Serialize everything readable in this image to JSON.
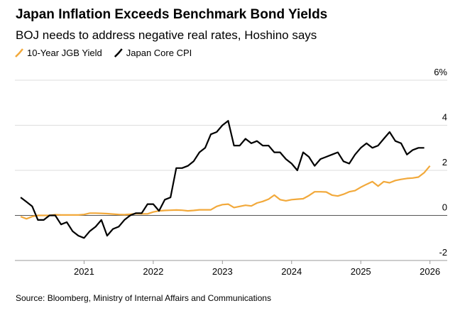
{
  "chart_data": {
    "type": "line",
    "title": "Japan Inflation Exceeds Benchmark Bond Yields",
    "subtitle": "BOJ needs to address negative real rates, Hoshino says",
    "source": "Source: Bloomberg, Ministry of Internal Affairs and Communications",
    "x": [
      2020.083,
      2020.167,
      2020.25,
      2020.333,
      2020.417,
      2020.5,
      2020.583,
      2020.667,
      2020.75,
      2020.833,
      2020.917,
      2021,
      2021.083,
      2021.167,
      2021.25,
      2021.333,
      2021.417,
      2021.5,
      2021.583,
      2021.667,
      2021.75,
      2021.833,
      2021.917,
      2022,
      2022.083,
      2022.167,
      2022.25,
      2022.333,
      2022.417,
      2022.5,
      2022.583,
      2022.667,
      2022.75,
      2022.833,
      2022.917,
      2023,
      2023.083,
      2023.167,
      2023.25,
      2023.333,
      2023.417,
      2023.5,
      2023.583,
      2023.667,
      2023.75,
      2023.833,
      2023.917,
      2024,
      2024.083,
      2024.167,
      2024.25,
      2024.333,
      2024.417,
      2024.5,
      2024.583,
      2024.667,
      2024.75,
      2024.833,
      2024.917,
      2025,
      2025.083,
      2025.167,
      2025.25,
      2025.333,
      2025.417,
      2025.5,
      2025.583,
      2025.667,
      2025.75,
      2025.833,
      2025.917,
      2026
    ],
    "series": [
      {
        "name": "10-Year JGB Yield",
        "color": "#f2a93b",
        "values": [
          -0.05,
          -0.15,
          -0.05,
          0,
          0,
          0,
          0.03,
          0.02,
          0.02,
          0.02,
          0.02,
          0.04,
          0.1,
          0.1,
          0.09,
          0.08,
          0.06,
          0.04,
          0.03,
          0.05,
          0.08,
          0.07,
          0.07,
          0.15,
          0.2,
          0.22,
          0.23,
          0.24,
          0.23,
          0.2,
          0.22,
          0.25,
          0.25,
          0.25,
          0.4,
          0.48,
          0.5,
          0.35,
          0.4,
          0.45,
          0.42,
          0.55,
          0.62,
          0.72,
          0.9,
          0.7,
          0.65,
          0.7,
          0.72,
          0.74,
          0.88,
          1.05,
          1.05,
          1.04,
          0.9,
          0.86,
          0.94,
          1.05,
          1.1,
          1.25,
          1.38,
          1.5,
          1.3,
          1.5,
          1.45,
          1.55,
          1.6,
          1.64,
          1.66,
          1.7,
          1.9,
          2.2
        ]
      },
      {
        "name": "Japan Core CPI",
        "color": "#000000",
        "values": [
          0.8,
          0.6,
          0.4,
          -0.2,
          -0.2,
          0,
          0,
          -0.4,
          -0.3,
          -0.7,
          -0.9,
          -1.0,
          -0.7,
          -0.5,
          -0.2,
          -0.9,
          -0.6,
          -0.5,
          -0.2,
          0,
          0.1,
          0.1,
          0.5,
          0.5,
          0.2,
          0.7,
          0.8,
          2.1,
          2.1,
          2.2,
          2.4,
          2.8,
          3.0,
          3.6,
          3.7,
          4.0,
          4.2,
          3.1,
          3.1,
          3.4,
          3.2,
          3.3,
          3.1,
          3.1,
          2.8,
          2.8,
          2.5,
          2.3,
          2.0,
          2.8,
          2.6,
          2.2,
          2.5,
          2.6,
          2.7,
          2.8,
          2.4,
          2.3,
          2.7,
          3.0,
          3.2,
          3.0,
          3.1,
          3.4,
          3.7,
          3.3,
          3.2,
          2.7,
          2.9,
          3.0,
          3.0,
          null
        ]
      }
    ],
    "xlim": [
      2020,
      2026.25
    ],
    "xticks": [
      2021,
      2022,
      2023,
      2024,
      2025,
      2026
    ],
    "ylim": [
      -2,
      6
    ],
    "yticks": [
      -2,
      0,
      2,
      4,
      {
        "value": 6,
        "label": "6%"
      }
    ],
    "grid": true
  }
}
